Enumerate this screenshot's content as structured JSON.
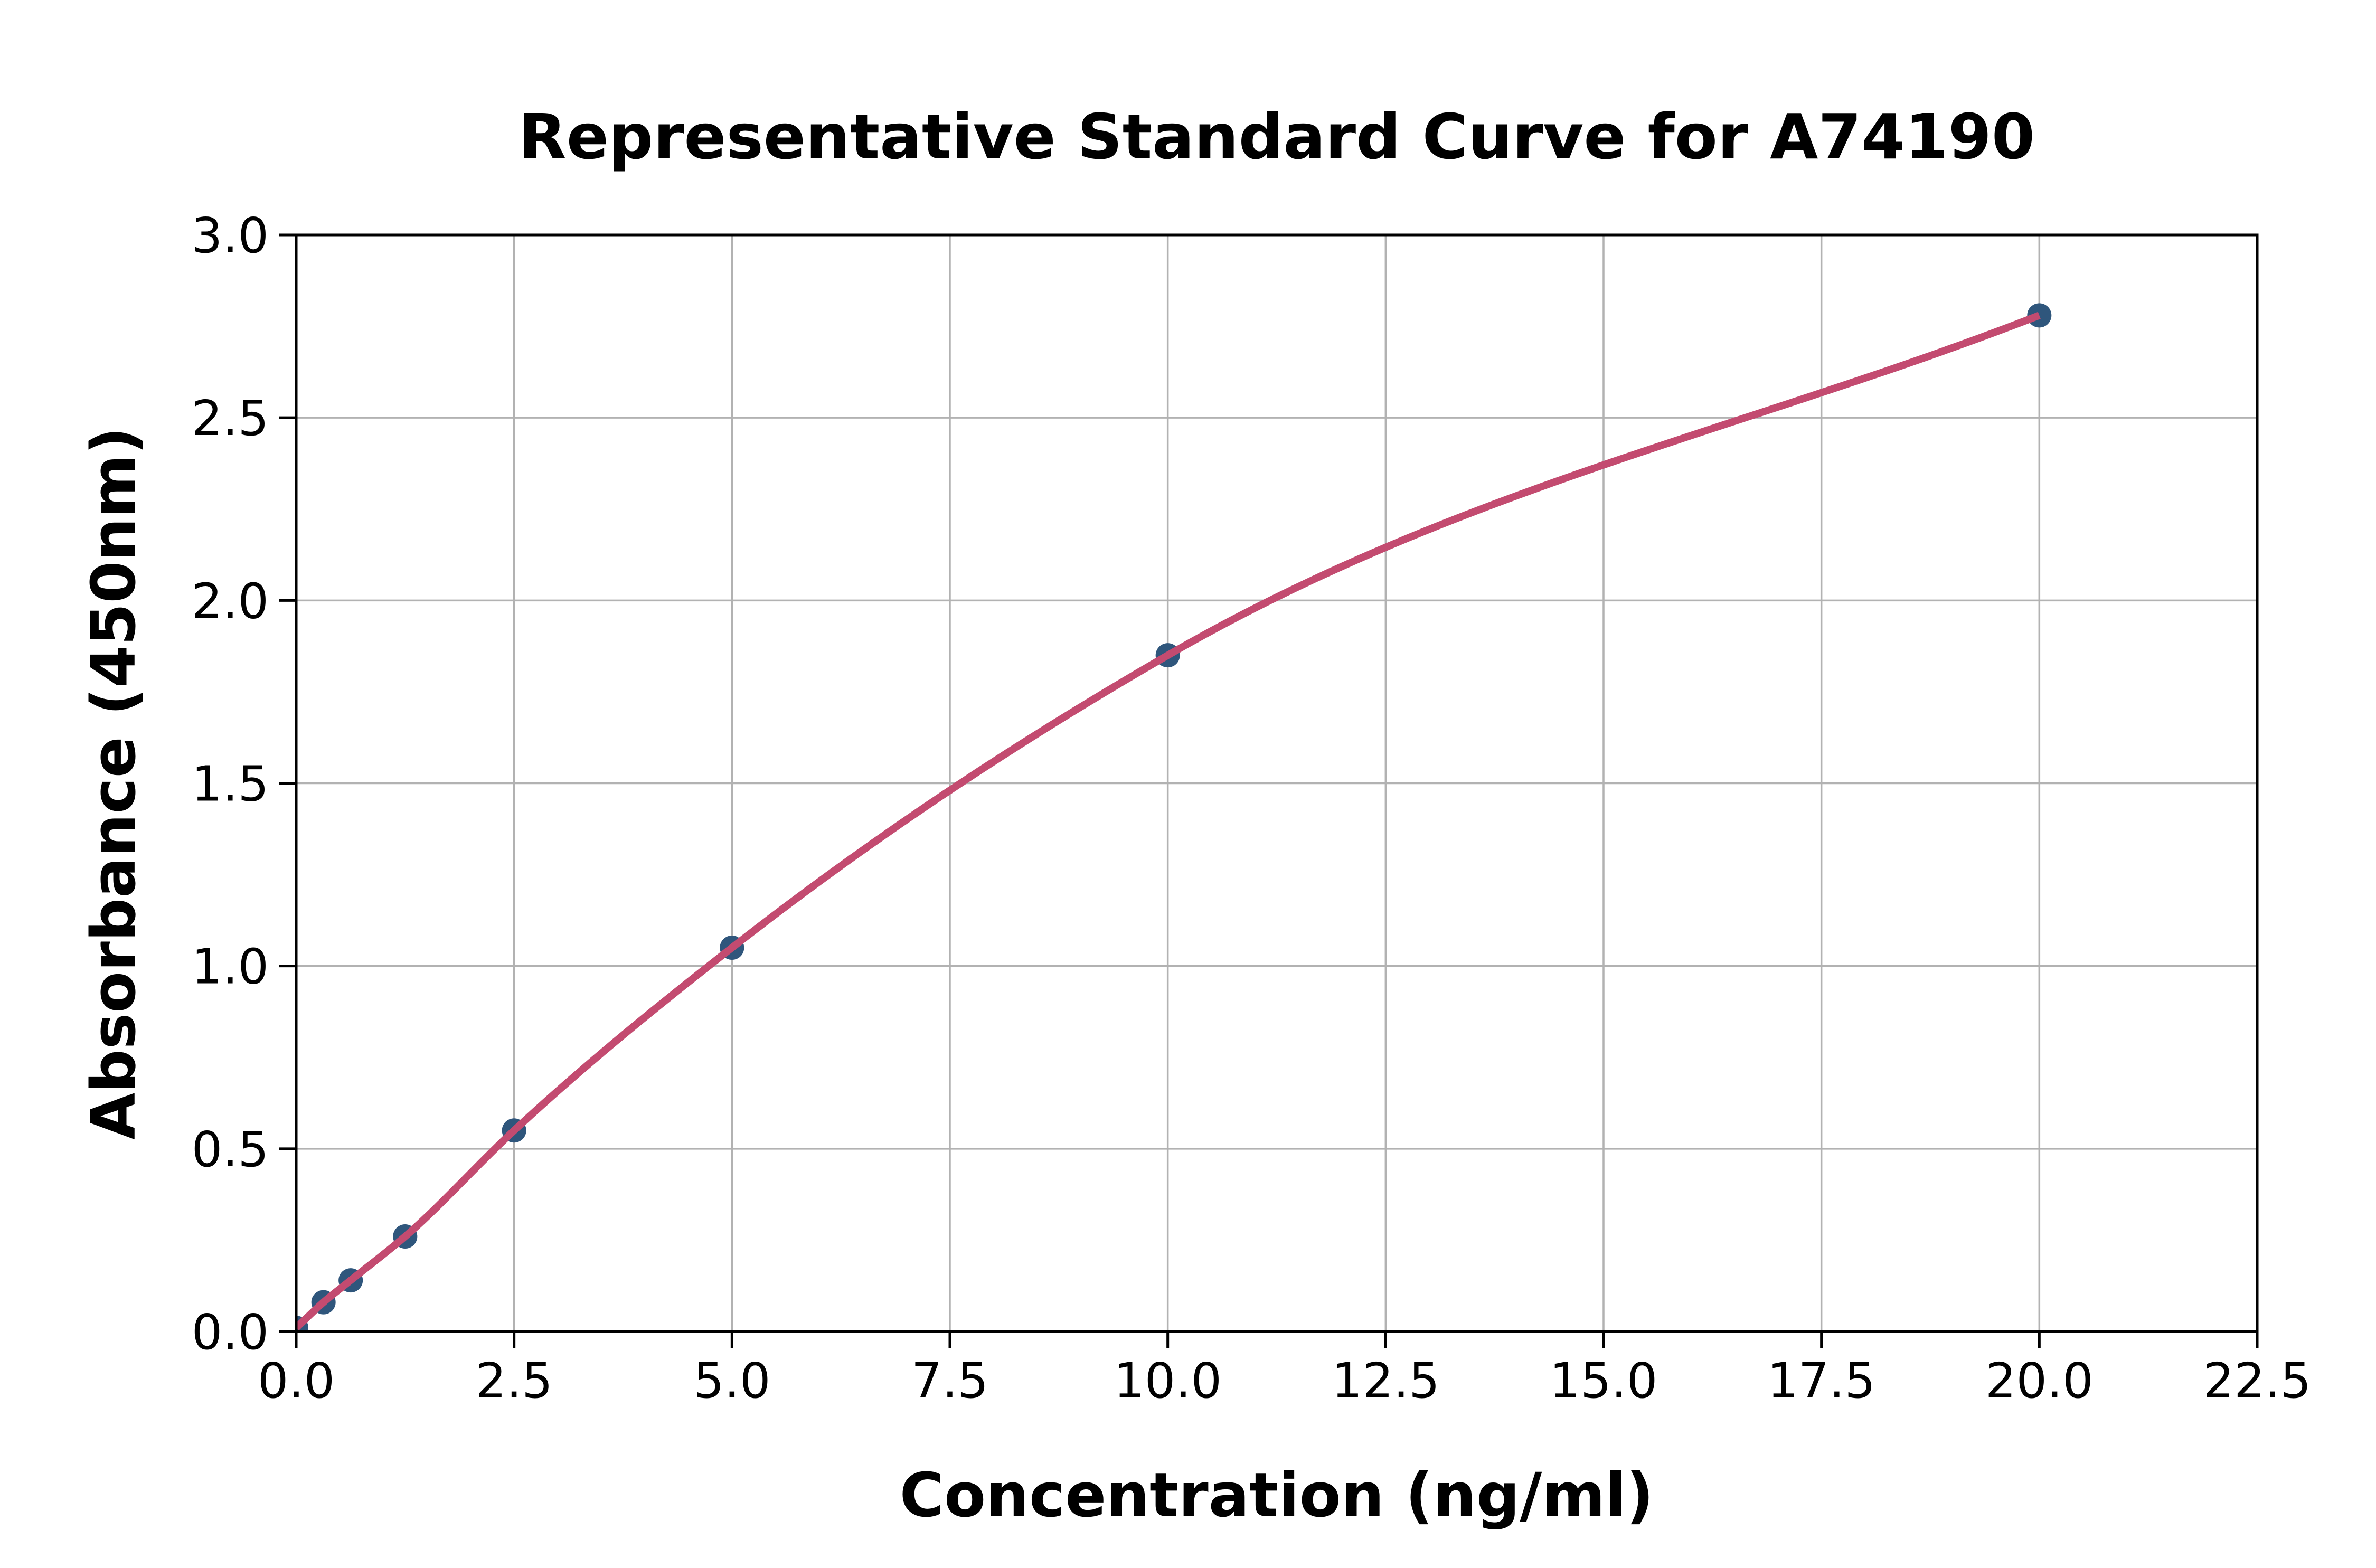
{
  "chart_data": {
    "type": "scatter",
    "title": "Representative Standard Curve for A74190",
    "xlabel": "Concentration (ng/ml)",
    "ylabel": "Absorbance (450nm)",
    "xlim": [
      0,
      22.5
    ],
    "ylim": [
      0,
      3.0
    ],
    "xticks": [
      0.0,
      2.5,
      5.0,
      7.5,
      10.0,
      12.5,
      15.0,
      17.5,
      20.0,
      22.5
    ],
    "yticks": [
      0.0,
      0.5,
      1.0,
      1.5,
      2.0,
      2.5,
      3.0
    ],
    "tick_label_decimals": 1,
    "grid": true,
    "legend_position": "none",
    "series": [
      {
        "name": "standards",
        "marker": "circle",
        "line": "smooth",
        "x": [
          0,
          0.313,
          0.625,
          1.25,
          2.5,
          5,
          10,
          20
        ],
        "y": [
          0.01,
          0.08,
          0.14,
          0.26,
          0.55,
          1.05,
          1.85,
          2.78
        ]
      }
    ],
    "colors": {
      "marker": "#2f567c",
      "curve": "#c34b70",
      "grid": "#b2b2b2",
      "axis": "#000000",
      "background": "#ffffff"
    }
  }
}
